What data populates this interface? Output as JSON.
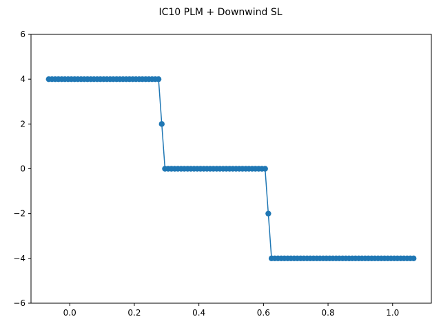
{
  "chart_data": {
    "type": "line",
    "title": "IC10 PLM + Downwind SL",
    "xlabel": "",
    "ylabel": "",
    "xlim": [
      -0.12,
      1.12
    ],
    "ylim": [
      -6,
      6
    ],
    "grid": false,
    "x_ticks": [
      0.0,
      0.2,
      0.4,
      0.6,
      0.8,
      1.0
    ],
    "x_tick_labels": [
      "0.0",
      "0.2",
      "0.4",
      "0.6",
      "0.8",
      "1.0"
    ],
    "y_ticks": [
      -6,
      -4,
      -2,
      0,
      2,
      4,
      6
    ],
    "y_tick_labels": [
      "−6",
      "−4",
      "−2",
      "0",
      "2",
      "4",
      "6"
    ],
    "marker": "circle",
    "color": "#1f77b4",
    "series": [
      {
        "x": [
          -0.065,
          -0.055,
          -0.045,
          -0.035,
          -0.025,
          -0.015,
          -0.005,
          0.005,
          0.015,
          0.025,
          0.035,
          0.045,
          0.055,
          0.065,
          0.075,
          0.085,
          0.095,
          0.105,
          0.115,
          0.125,
          0.135,
          0.145,
          0.155,
          0.165,
          0.175,
          0.185,
          0.195,
          0.205,
          0.215,
          0.225,
          0.235,
          0.245,
          0.255,
          0.265,
          0.275,
          0.285,
          0.295,
          0.305,
          0.315,
          0.325,
          0.335,
          0.345,
          0.355,
          0.365,
          0.375,
          0.385,
          0.395,
          0.405,
          0.415,
          0.425,
          0.435,
          0.445,
          0.455,
          0.465,
          0.475,
          0.485,
          0.495,
          0.505,
          0.515,
          0.525,
          0.535,
          0.545,
          0.555,
          0.565,
          0.575,
          0.585,
          0.595,
          0.605,
          0.615,
          0.625,
          0.635,
          0.645,
          0.655,
          0.665,
          0.675,
          0.685,
          0.695,
          0.705,
          0.715,
          0.725,
          0.735,
          0.745,
          0.755,
          0.765,
          0.775,
          0.785,
          0.795,
          0.805,
          0.815,
          0.825,
          0.835,
          0.845,
          0.855,
          0.865,
          0.875,
          0.885,
          0.895,
          0.905,
          0.915,
          0.925,
          0.935,
          0.945,
          0.955,
          0.965,
          0.975,
          0.985,
          0.995,
          1.005,
          1.015,
          1.025,
          1.035,
          1.045,
          1.055,
          1.065
        ],
        "y": [
          4,
          4,
          4,
          4,
          4,
          4,
          4,
          4,
          4,
          4,
          4,
          4,
          4,
          4,
          4,
          4,
          4,
          4,
          4,
          4,
          4,
          4,
          4,
          4,
          4,
          4,
          4,
          4,
          4,
          4,
          4,
          4,
          4,
          4,
          4,
          2,
          0,
          0,
          0,
          0,
          0,
          0,
          0,
          0,
          0,
          0,
          0,
          0,
          0,
          0,
          0,
          0,
          0,
          0,
          0,
          0,
          0,
          0,
          0,
          0,
          0,
          0,
          0,
          0,
          0,
          0,
          0,
          0,
          -2,
          -4,
          -4,
          -4,
          -4,
          -4,
          -4,
          -4,
          -4,
          -4,
          -4,
          -4,
          -4,
          -4,
          -4,
          -4,
          -4,
          -4,
          -4,
          -4,
          -4,
          -4,
          -4,
          -4,
          -4,
          -4,
          -4,
          -4,
          -4,
          -4,
          -4,
          -4,
          -4,
          -4,
          -4,
          -4,
          -4,
          -4,
          -4,
          -4,
          -4,
          -4,
          -4,
          -4,
          -4,
          -4
        ]
      }
    ]
  }
}
